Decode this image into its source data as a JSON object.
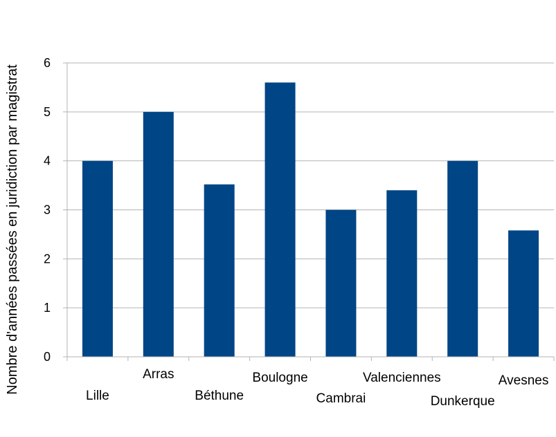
{
  "chart_data": {
    "type": "bar",
    "ylabel": "Nombre d'années passées en juridiction par magistrat",
    "xlabel": "",
    "ylim": [
      0,
      6
    ],
    "yticks": [
      0,
      1,
      2,
      3,
      4,
      5,
      6
    ],
    "grid": true,
    "legend": "none",
    "categories": [
      "Lille",
      "Arras",
      "Béthune",
      "Boulogne",
      "Cambrai",
      "Valenciennes",
      "Dunkerque",
      "Avesnes"
    ],
    "series": [
      {
        "values": [
          4.0,
          5.0,
          3.52,
          5.6,
          3.0,
          3.4,
          4.0,
          2.58
        ]
      }
    ],
    "bar_color": "#004586",
    "gridline_color": "#b3b3b3"
  }
}
